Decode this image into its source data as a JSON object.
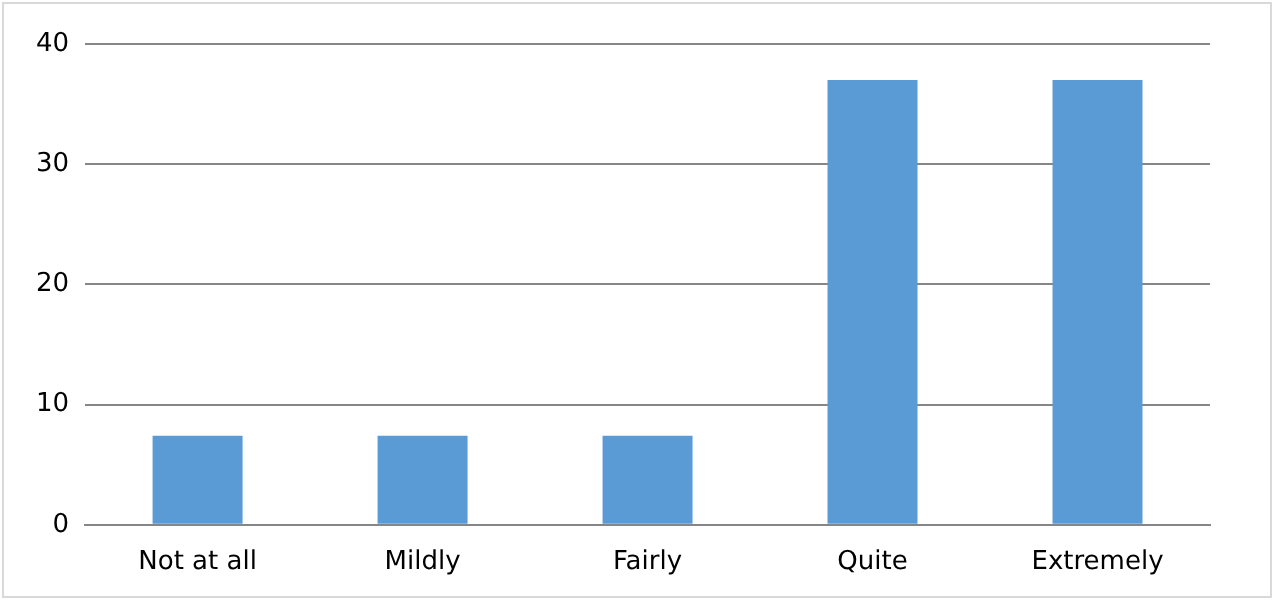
{
  "chart_data": {
    "type": "bar",
    "categories": [
      "Not at all",
      "Mildly",
      "Fairly",
      "Quite",
      "Extremely"
    ],
    "values": [
      7.4,
      7.4,
      7.4,
      37,
      37
    ],
    "color": "#5b9bd5",
    "ylim": [
      0,
      40
    ],
    "yticks": [
      0,
      10,
      20,
      30,
      40
    ],
    "grid": "y",
    "legend": false
  }
}
